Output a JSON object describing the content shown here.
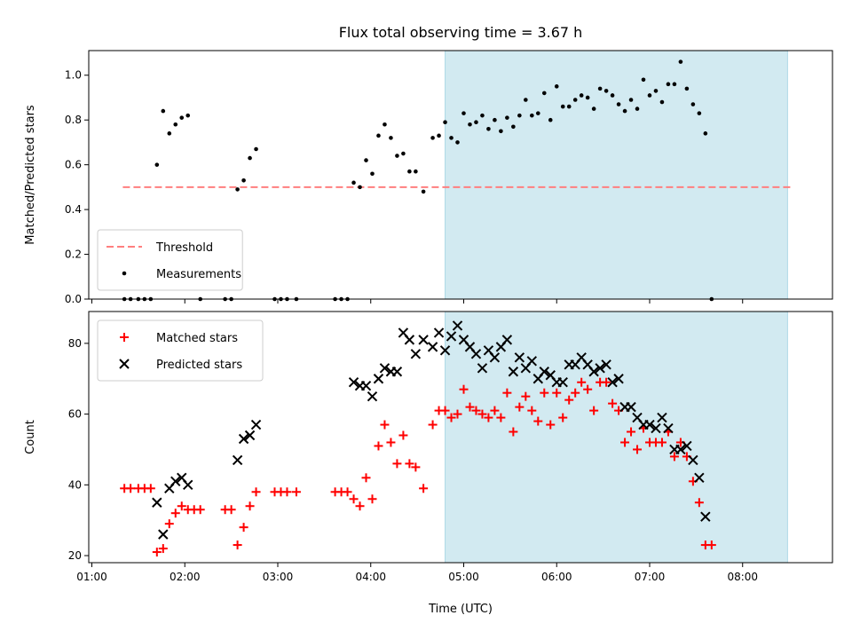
{
  "figure": {
    "title": "Flux total observing time = 3.67 h",
    "background": "#ffffff"
  },
  "chart_data": [
    {
      "panel": "top",
      "type": "scatter",
      "xlabel": "",
      "ylabel": "Matched/Predicted stars",
      "xlim": [
        "00:58",
        "08:58"
      ],
      "ylim": [
        0,
        1.11
      ],
      "yticks": [
        "0.0",
        "0.2",
        "0.4",
        "0.6",
        "0.8",
        "1.0"
      ],
      "ytick_values": [
        0,
        0.2,
        0.4,
        0.6,
        0.8,
        1.0
      ],
      "xticks": [
        "01:00",
        "02:00",
        "03:00",
        "04:00",
        "05:00",
        "06:00",
        "07:00",
        "08:00"
      ],
      "show_xticklabels": false,
      "shaded_region": {
        "x_start": "04:48",
        "x_end": "08:29",
        "color": "#add8e6"
      },
      "grid": false,
      "legend": {
        "placement": "lower-left",
        "entries": [
          {
            "label": "Threshold",
            "kind": "dashed-line",
            "color": "#ff7f7f"
          },
          {
            "label": "Measurements",
            "kind": "dot",
            "color": "#000000"
          }
        ]
      },
      "threshold": {
        "label": "Threshold",
        "y": 0.5,
        "x_start": "01:20",
        "x_end": "08:33",
        "color": "#ff7f7f",
        "style": "dashed"
      },
      "series": [
        {
          "name": "Measurements",
          "marker": "dot",
          "color": "#000000",
          "points": [
            [
              "01:21",
              0.0
            ],
            [
              "01:25",
              0.0
            ],
            [
              "01:30",
              0.0
            ],
            [
              "01:34",
              0.0
            ],
            [
              "01:38",
              0.0
            ],
            [
              "01:42",
              0.6
            ],
            [
              "01:46",
              0.84
            ],
            [
              "01:50",
              0.74
            ],
            [
              "01:54",
              0.78
            ],
            [
              "01:58",
              0.81
            ],
            [
              "02:02",
              0.82
            ],
            [
              "02:10",
              0.0
            ],
            [
              "02:26",
              0.0
            ],
            [
              "02:30",
              0.0
            ],
            [
              "02:34",
              0.49
            ],
            [
              "02:38",
              0.53
            ],
            [
              "02:42",
              0.63
            ],
            [
              "02:46",
              0.67
            ],
            [
              "02:58",
              0.0
            ],
            [
              "03:02",
              0.0
            ],
            [
              "03:06",
              0.0
            ],
            [
              "03:12",
              0.0
            ],
            [
              "03:37",
              0.0
            ],
            [
              "03:41",
              0.0
            ],
            [
              "03:45",
              0.0
            ],
            [
              "03:49",
              0.52
            ],
            [
              "03:53",
              0.5
            ],
            [
              "03:57",
              0.62
            ],
            [
              "04:01",
              0.56
            ],
            [
              "04:05",
              0.73
            ],
            [
              "04:09",
              0.78
            ],
            [
              "04:13",
              0.72
            ],
            [
              "04:17",
              0.64
            ],
            [
              "04:21",
              0.65
            ],
            [
              "04:25",
              0.57
            ],
            [
              "04:29",
              0.57
            ],
            [
              "04:34",
              0.48
            ],
            [
              "04:40",
              0.72
            ],
            [
              "04:44",
              0.73
            ],
            [
              "04:48",
              0.79
            ],
            [
              "04:52",
              0.72
            ],
            [
              "04:56",
              0.7
            ],
            [
              "05:00",
              0.83
            ],
            [
              "05:04",
              0.78
            ],
            [
              "05:08",
              0.79
            ],
            [
              "05:12",
              0.82
            ],
            [
              "05:16",
              0.76
            ],
            [
              "05:20",
              0.8
            ],
            [
              "05:24",
              0.75
            ],
            [
              "05:28",
              0.81
            ],
            [
              "05:32",
              0.77
            ],
            [
              "05:36",
              0.82
            ],
            [
              "05:40",
              0.89
            ],
            [
              "05:44",
              0.82
            ],
            [
              "05:48",
              0.83
            ],
            [
              "05:52",
              0.92
            ],
            [
              "05:56",
              0.8
            ],
            [
              "06:00",
              0.95
            ],
            [
              "06:04",
              0.86
            ],
            [
              "06:08",
              0.86
            ],
            [
              "06:12",
              0.89
            ],
            [
              "06:16",
              0.91
            ],
            [
              "06:20",
              0.9
            ],
            [
              "06:24",
              0.85
            ],
            [
              "06:28",
              0.94
            ],
            [
              "06:32",
              0.93
            ],
            [
              "06:36",
              0.91
            ],
            [
              "06:40",
              0.87
            ],
            [
              "06:44",
              0.84
            ],
            [
              "06:48",
              0.89
            ],
            [
              "06:52",
              0.85
            ],
            [
              "06:56",
              0.98
            ],
            [
              "07:00",
              0.91
            ],
            [
              "07:04",
              0.93
            ],
            [
              "07:08",
              0.88
            ],
            [
              "07:12",
              0.96
            ],
            [
              "07:16",
              0.96
            ],
            [
              "07:20",
              1.06
            ],
            [
              "07:24",
              0.94
            ],
            [
              "07:28",
              0.87
            ],
            [
              "07:32",
              0.83
            ],
            [
              "07:36",
              0.74
            ],
            [
              "07:40",
              0.0
            ]
          ]
        }
      ]
    },
    {
      "panel": "bottom",
      "type": "scatter",
      "xlabel": "Time (UTC)",
      "ylabel": "Count",
      "xlim": [
        "00:58",
        "08:58"
      ],
      "ylim": [
        18,
        89
      ],
      "yticks": [
        "20",
        "40",
        "60",
        "80"
      ],
      "ytick_values": [
        20,
        40,
        60,
        80
      ],
      "xticks": [
        "01:00",
        "02:00",
        "03:00",
        "04:00",
        "05:00",
        "06:00",
        "07:00",
        "08:00"
      ],
      "shaded_region": {
        "x_start": "04:48",
        "x_end": "08:29",
        "color": "#add8e6"
      },
      "grid": false,
      "legend": {
        "placement": "upper-left",
        "entries": [
          {
            "label": "Matched stars",
            "kind": "plus",
            "color": "#ff0000"
          },
          {
            "label": "Predicted stars",
            "kind": "x",
            "color": "#000000"
          }
        ]
      },
      "series": [
        {
          "name": "Matched stars",
          "marker": "plus",
          "color": "#ff0000",
          "points": [
            [
              "01:21",
              39
            ],
            [
              "01:25",
              39
            ],
            [
              "01:30",
              39
            ],
            [
              "01:34",
              39
            ],
            [
              "01:38",
              39
            ],
            [
              "01:42",
              21
            ],
            [
              "01:46",
              22
            ],
            [
              "01:50",
              29
            ],
            [
              "01:54",
              32
            ],
            [
              "01:58",
              34
            ],
            [
              "02:02",
              33
            ],
            [
              "02:06",
              33
            ],
            [
              "02:10",
              33
            ],
            [
              "02:26",
              33
            ],
            [
              "02:30",
              33
            ],
            [
              "02:34",
              23
            ],
            [
              "02:38",
              28
            ],
            [
              "02:42",
              34
            ],
            [
              "02:46",
              38
            ],
            [
              "02:58",
              38
            ],
            [
              "03:02",
              38
            ],
            [
              "03:06",
              38
            ],
            [
              "03:12",
              38
            ],
            [
              "03:37",
              38
            ],
            [
              "03:41",
              38
            ],
            [
              "03:45",
              38
            ],
            [
              "03:49",
              36
            ],
            [
              "03:53",
              34
            ],
            [
              "03:57",
              42
            ],
            [
              "04:01",
              36
            ],
            [
              "04:05",
              51
            ],
            [
              "04:09",
              57
            ],
            [
              "04:13",
              52
            ],
            [
              "04:17",
              46
            ],
            [
              "04:21",
              54
            ],
            [
              "04:25",
              46
            ],
            [
              "04:29",
              45
            ],
            [
              "04:34",
              39
            ],
            [
              "04:40",
              57
            ],
            [
              "04:44",
              61
            ],
            [
              "04:48",
              61
            ],
            [
              "04:52",
              59
            ],
            [
              "04:56",
              60
            ],
            [
              "05:00",
              67
            ],
            [
              "05:04",
              62
            ],
            [
              "05:08",
              61
            ],
            [
              "05:12",
              60
            ],
            [
              "05:16",
              59
            ],
            [
              "05:20",
              61
            ],
            [
              "05:24",
              59
            ],
            [
              "05:28",
              66
            ],
            [
              "05:32",
              55
            ],
            [
              "05:36",
              62
            ],
            [
              "05:40",
              65
            ],
            [
              "05:44",
              61
            ],
            [
              "05:48",
              58
            ],
            [
              "05:52",
              66
            ],
            [
              "05:56",
              57
            ],
            [
              "06:00",
              66
            ],
            [
              "06:04",
              59
            ],
            [
              "06:08",
              64
            ],
            [
              "06:12",
              66
            ],
            [
              "06:16",
              69
            ],
            [
              "06:20",
              67
            ],
            [
              "06:24",
              61
            ],
            [
              "06:28",
              69
            ],
            [
              "06:32",
              69
            ],
            [
              "06:36",
              63
            ],
            [
              "06:40",
              61
            ],
            [
              "06:44",
              52
            ],
            [
              "06:48",
              55
            ],
            [
              "06:52",
              50
            ],
            [
              "06:56",
              56
            ],
            [
              "07:00",
              52
            ],
            [
              "07:04",
              52
            ],
            [
              "07:08",
              52
            ],
            [
              "07:12",
              55
            ],
            [
              "07:16",
              48
            ],
            [
              "07:20",
              52
            ],
            [
              "07:24",
              48
            ],
            [
              "07:28",
              41
            ],
            [
              "07:32",
              35
            ],
            [
              "07:36",
              23
            ],
            [
              "07:40",
              23
            ]
          ]
        },
        {
          "name": "Predicted stars",
          "marker": "x",
          "color": "#000000",
          "points": [
            [
              "01:42",
              35
            ],
            [
              "01:46",
              26
            ],
            [
              "01:50",
              39
            ],
            [
              "01:54",
              41
            ],
            [
              "01:58",
              42
            ],
            [
              "02:02",
              40
            ],
            [
              "02:34",
              47
            ],
            [
              "02:38",
              53
            ],
            [
              "02:42",
              54
            ],
            [
              "02:46",
              57
            ],
            [
              "03:49",
              69
            ],
            [
              "03:53",
              68
            ],
            [
              "03:57",
              68
            ],
            [
              "04:01",
              65
            ],
            [
              "04:05",
              70
            ],
            [
              "04:09",
              73
            ],
            [
              "04:13",
              72
            ],
            [
              "04:17",
              72
            ],
            [
              "04:21",
              83
            ],
            [
              "04:25",
              81
            ],
            [
              "04:29",
              77
            ],
            [
              "04:34",
              81
            ],
            [
              "04:40",
              79
            ],
            [
              "04:44",
              83
            ],
            [
              "04:48",
              78
            ],
            [
              "04:52",
              82
            ],
            [
              "04:56",
              85
            ],
            [
              "05:00",
              81
            ],
            [
              "05:04",
              79
            ],
            [
              "05:08",
              77
            ],
            [
              "05:12",
              73
            ],
            [
              "05:16",
              78
            ],
            [
              "05:20",
              76
            ],
            [
              "05:24",
              79
            ],
            [
              "05:28",
              81
            ],
            [
              "05:32",
              72
            ],
            [
              "05:36",
              76
            ],
            [
              "05:40",
              73
            ],
            [
              "05:44",
              75
            ],
            [
              "05:48",
              70
            ],
            [
              "05:52",
              72
            ],
            [
              "05:56",
              71
            ],
            [
              "06:00",
              69
            ],
            [
              "06:04",
              69
            ],
            [
              "06:08",
              74
            ],
            [
              "06:12",
              74
            ],
            [
              "06:16",
              76
            ],
            [
              "06:20",
              74
            ],
            [
              "06:24",
              72
            ],
            [
              "06:28",
              73
            ],
            [
              "06:32",
              74
            ],
            [
              "06:36",
              69
            ],
            [
              "06:40",
              70
            ],
            [
              "06:44",
              62
            ],
            [
              "06:48",
              62
            ],
            [
              "06:52",
              59
            ],
            [
              "06:56",
              57
            ],
            [
              "07:00",
              57
            ],
            [
              "07:04",
              56
            ],
            [
              "07:08",
              59
            ],
            [
              "07:12",
              56
            ],
            [
              "07:16",
              50
            ],
            [
              "07:20",
              50
            ],
            [
              "07:24",
              51
            ],
            [
              "07:28",
              47
            ],
            [
              "07:32",
              42
            ],
            [
              "07:36",
              31
            ]
          ]
        }
      ]
    }
  ]
}
